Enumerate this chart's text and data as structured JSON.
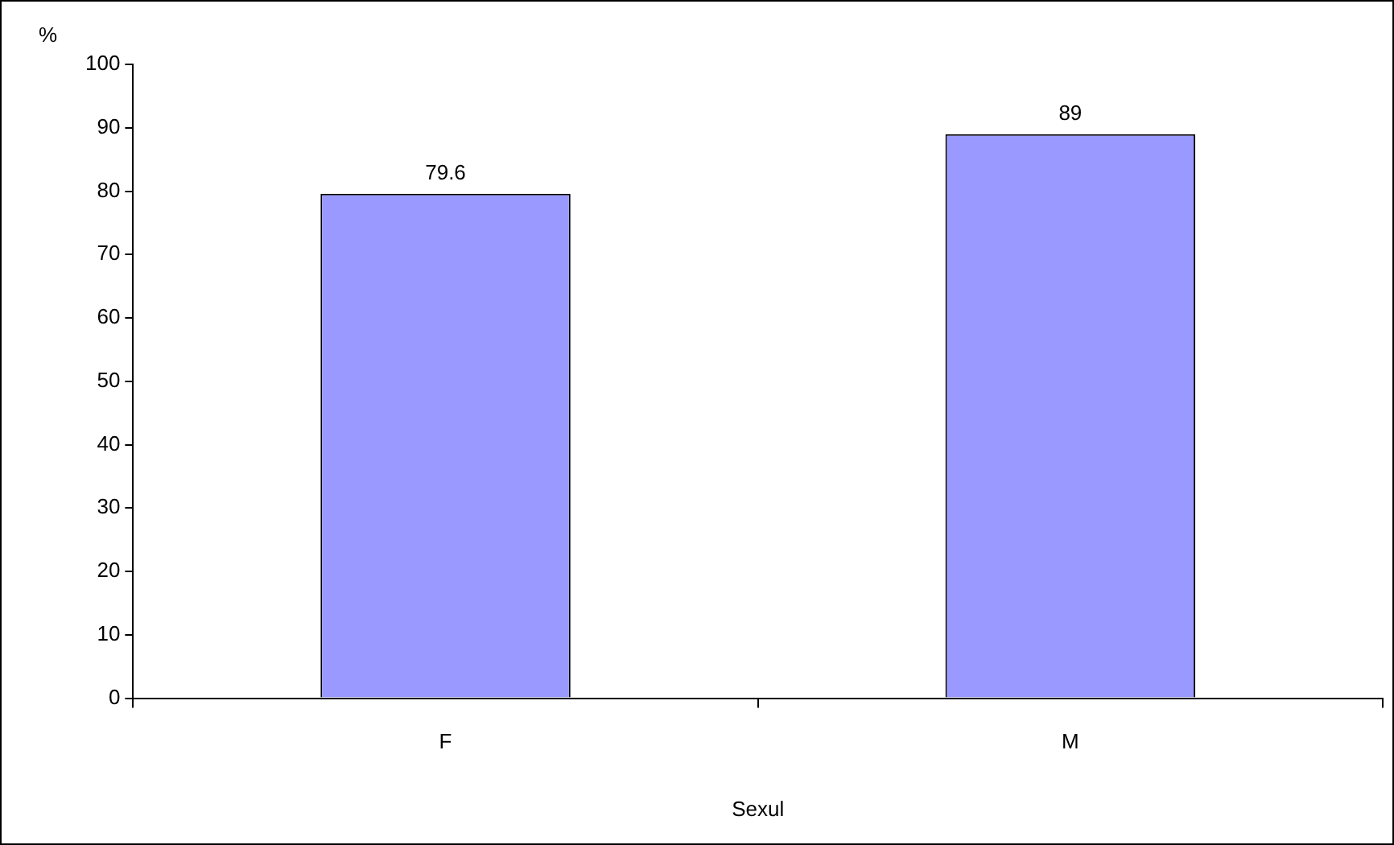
{
  "chart_data": {
    "type": "bar",
    "categories": [
      "F",
      "M"
    ],
    "values": [
      79.6,
      89
    ],
    "color": "#9999ff",
    "ylim": [
      0,
      100
    ],
    "yticks": [
      0,
      10,
      20,
      30,
      40,
      50,
      60,
      70,
      80,
      90,
      100
    ],
    "ylabel": "%",
    "xlabel": "Sexul",
    "data_labels": true,
    "grid": false,
    "legend": false
  }
}
